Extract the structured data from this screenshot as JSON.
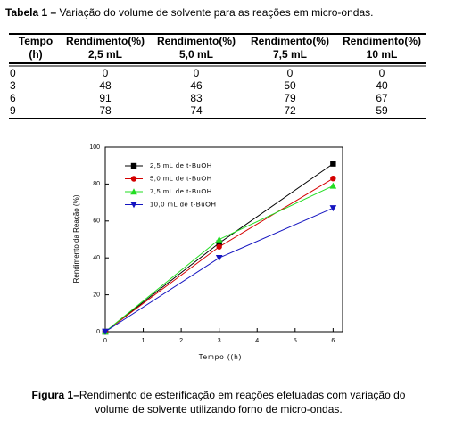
{
  "table": {
    "caption_label": "Tabela 1 –",
    "caption": "Variação do volume de solvente para as reações em micro-ondas.",
    "header": [
      [
        "Tempo",
        "(h)"
      ],
      [
        "Rendimento(%)",
        "2,5 mL"
      ],
      [
        "Rendimento(%)",
        "5,0 mL"
      ],
      [
        "Rendimento(%)",
        "7,5 mL"
      ],
      [
        "Rendimento(%)",
        "10 mL"
      ]
    ],
    "rows": [
      [
        0,
        0,
        0,
        0,
        0
      ],
      [
        3,
        48,
        46,
        50,
        40
      ],
      [
        6,
        91,
        83,
        79,
        67
      ],
      [
        9,
        78,
        74,
        72,
        59
      ]
    ]
  },
  "chart_data": {
    "type": "line",
    "xlabel": "Tempo ((h)",
    "ylabel": "Rendimento da Reação (%)",
    "x": [
      0,
      3,
      6
    ],
    "series": [
      {
        "name": "2,5 mL de t-BuOH",
        "color": "#000000",
        "marker": "square",
        "values": [
          0,
          48,
          91
        ]
      },
      {
        "name": "5,0 mL de t-BuOH",
        "color": "#d40000",
        "marker": "circle",
        "values": [
          0,
          46,
          83
        ]
      },
      {
        "name": "7,5 mL de t-BuOH",
        "color": "#22dd22",
        "marker": "triangle-up",
        "values": [
          0,
          50,
          79
        ]
      },
      {
        "name": "10,0 mL de t-BuOH",
        "color": "#1414c0",
        "marker": "triangle-down",
        "values": [
          0,
          40,
          67
        ]
      }
    ],
    "xlim": [
      0,
      6.25
    ],
    "ylim": [
      0,
      100
    ],
    "xticks": [
      0,
      1,
      2,
      3,
      4,
      5,
      6
    ],
    "yticks": [
      0,
      20,
      40,
      60,
      80,
      100
    ],
    "legend": "upper left"
  },
  "figure": {
    "label": "Figura 1–",
    "caption_lines": [
      "Rendimento de esterificação em reações efetuadas com variação do",
      "volume de solvente utilizando forno de micro-ondas."
    ]
  }
}
